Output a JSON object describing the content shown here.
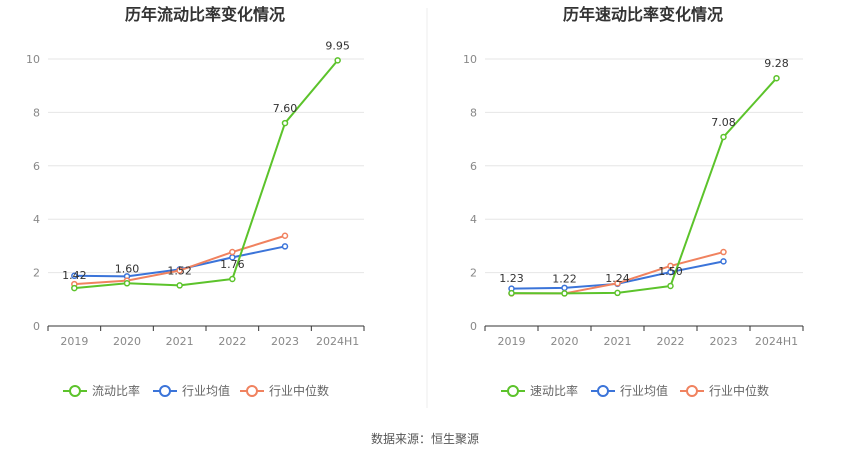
{
  "source_text": "数据来源：恒生聚源",
  "chart_data": [
    {
      "type": "line",
      "title": "历年流动比率变化情况",
      "categories": [
        "2019",
        "2020",
        "2021",
        "2022",
        "2023",
        "2024H1"
      ],
      "ylim": [
        0,
        10
      ],
      "yticks": [
        "0",
        "2",
        "4",
        "6",
        "8",
        "10"
      ],
      "grid": true,
      "legend_position": "bottom",
      "series": [
        {
          "name": "流动比率",
          "color": "#5cc32b",
          "values": [
            1.42,
            1.6,
            1.52,
            1.76,
            7.6,
            9.95
          ],
          "labels": [
            "1.42",
            "1.60",
            "1.52",
            "1.76",
            "7.60",
            "9.95"
          ]
        },
        {
          "name": "行业均值",
          "color": "#3b74d9",
          "values": [
            1.88,
            1.86,
            2.12,
            2.57,
            2.98,
            null
          ]
        },
        {
          "name": "行业中位数",
          "color": "#f0825f",
          "values": [
            1.57,
            1.7,
            2.08,
            2.77,
            3.38,
            null
          ]
        }
      ]
    },
    {
      "type": "line",
      "title": "历年速动比率变化情况",
      "categories": [
        "2019",
        "2020",
        "2021",
        "2022",
        "2023",
        "2024H1"
      ],
      "ylim": [
        0,
        10
      ],
      "yticks": [
        "0",
        "2",
        "4",
        "6",
        "8",
        "10"
      ],
      "grid": true,
      "legend_position": "bottom",
      "series": [
        {
          "name": "速动比率",
          "color": "#5cc32b",
          "values": [
            1.23,
            1.22,
            1.24,
            1.5,
            7.08,
            9.28
          ],
          "labels": [
            "1.23",
            "1.22",
            "1.24",
            "1.50",
            "7.08",
            "9.28"
          ]
        },
        {
          "name": "行业均值",
          "color": "#3b74d9",
          "values": [
            1.4,
            1.43,
            1.58,
            2.02,
            2.42,
            null
          ]
        },
        {
          "name": "行业中位数",
          "color": "#f0825f",
          "values": [
            1.22,
            1.22,
            1.6,
            2.25,
            2.77,
            null
          ]
        }
      ]
    }
  ]
}
